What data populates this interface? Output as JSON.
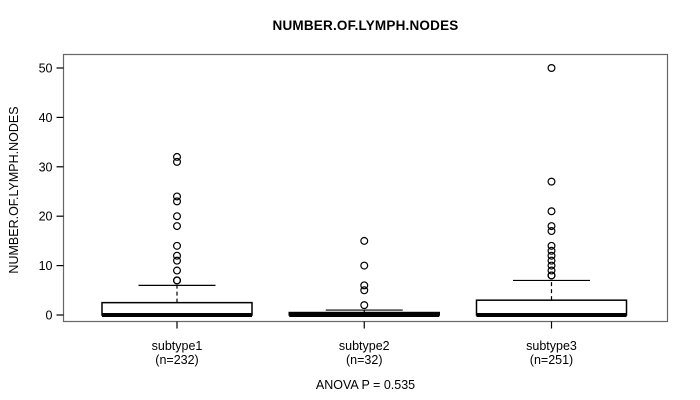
{
  "chart_data": {
    "type": "boxplot",
    "title": "NUMBER.OF.LYMPH.NODES",
    "ylabel": "NUMBER.OF.LYMPH.NODES",
    "footer": "ANOVA P = 0.535",
    "ylim": [
      0,
      50
    ],
    "yticks": [
      0,
      10,
      20,
      30,
      40,
      50
    ],
    "grid": false,
    "groups": [
      {
        "label": "subtype1",
        "sublabel": "(n=232)",
        "n": 232,
        "q1": 0,
        "median": 0,
        "q3": 2.5,
        "whisker_low": 0,
        "whisker_high": 6,
        "outliers": [
          7,
          7,
          9,
          11,
          12,
          14,
          18,
          20,
          23,
          24,
          31,
          32
        ]
      },
      {
        "label": "subtype2",
        "sublabel": "(n=32)",
        "n": 32,
        "q1": 0,
        "median": 0,
        "q3": 0.5,
        "whisker_low": 0,
        "whisker_high": 1,
        "outliers": [
          2,
          5,
          6,
          10,
          15
        ]
      },
      {
        "label": "subtype3",
        "sublabel": "(n=251)",
        "n": 251,
        "q1": 0,
        "median": 0,
        "q3": 3,
        "whisker_low": 0,
        "whisker_high": 7,
        "outliers": [
          8,
          8,
          9,
          10,
          11,
          12,
          13,
          14,
          17,
          18,
          21,
          27,
          50
        ]
      }
    ],
    "colors": {
      "line": "#000000",
      "border": "#666666",
      "box_fill": "#ffffff",
      "background": "#ffffff"
    }
  }
}
